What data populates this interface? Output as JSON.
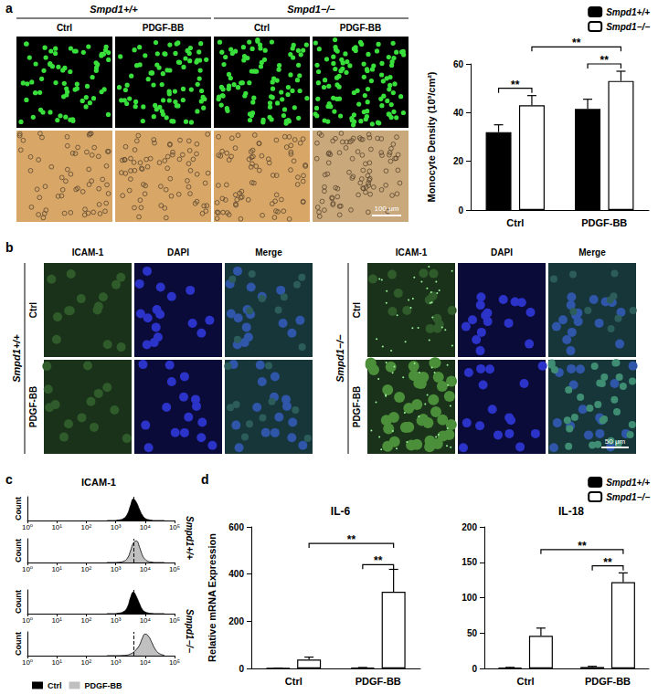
{
  "panel_labels": [
    "a",
    "b",
    "c",
    "d"
  ],
  "panel_a_images": {
    "groups": [
      "Smpd1+/+",
      "Smpd1−/−"
    ],
    "columns": [
      "Ctrl",
      "PDGF-BB",
      "Ctrl",
      "PDGF-BB"
    ],
    "scale_bar": "100 μm"
  },
  "panel_b_images": {
    "groups": [
      {
        "title": "Smpd1+/+",
        "rows": [
          "Ctrl",
          "PDGF-BB"
        ]
      },
      {
        "title": "Smpd1−/−",
        "rows": [
          "Ctrl",
          "PDGF-BB"
        ]
      }
    ],
    "columns": [
      "ICAM-1",
      "DAPI",
      "Merge"
    ],
    "scale_bar": "50 μm"
  },
  "panel_c_title": "ICAM-1",
  "chart_data": [
    {
      "type": "bar",
      "ylabel": "Monocyte Density (10³/cm²)",
      "categories": [
        "Ctrl",
        "PDGF-BB"
      ],
      "series": [
        {
          "name": "Smpd1+/+",
          "color": "#000000",
          "values": [
            32,
            41.5
          ],
          "errors": [
            3,
            4
          ]
        },
        {
          "name": "Smpd1−/−",
          "color": "#ffffff",
          "values": [
            43,
            53
          ],
          "errors": [
            4,
            4
          ]
        }
      ],
      "ylim": [
        0,
        60
      ],
      "yticks": [
        0,
        20,
        40,
        60
      ],
      "legend": "upper right",
      "annotations": [
        {
          "text": "**",
          "from": [
            "Ctrl",
            "Smpd1+/+"
          ],
          "to": [
            "Ctrl",
            "Smpd1−/−"
          ],
          "y": 50
        },
        {
          "text": "**",
          "from": [
            "PDGF-BB",
            "Smpd1+/+"
          ],
          "to": [
            "PDGF-BB",
            "Smpd1−/−"
          ],
          "y": 60
        },
        {
          "text": "**",
          "from": [
            "Ctrl",
            "Smpd1−/−"
          ],
          "to": [
            "PDGF-BB",
            "Smpd1−/−"
          ],
          "y": 67
        }
      ]
    },
    {
      "type": "area",
      "title": "Smpd1+/+",
      "ylabel": "Count",
      "log": "x",
      "tick_labels": "x",
      "x": [
        500,
        800,
        1200,
        1800,
        2500,
        3200,
        4000,
        5000,
        6500,
        8000,
        10000,
        13000,
        17000,
        22000,
        30000,
        45000
      ],
      "series": [
        {
          "name": "Ctrl",
          "color": "#000000",
          "values": [
            0,
            0,
            2,
            8,
            30,
            70,
            100,
            85,
            50,
            25,
            10,
            4,
            1,
            0,
            0,
            0
          ]
        },
        {
          "name": "PDGF-BB",
          "color": "#c0c0c0",
          "values": [
            0,
            0,
            1,
            5,
            20,
            55,
            90,
            100,
            70,
            35,
            15,
            5,
            2,
            0,
            0,
            0
          ]
        }
      ],
      "reference_x": 4000,
      "xlim": [
        1,
        100000
      ],
      "xticks": [
        {
          "value": 1,
          "label": "10⁰"
        },
        {
          "value": 10,
          "label": "10¹"
        },
        {
          "value": 100,
          "label": "10²"
        },
        {
          "value": 1000,
          "label": "10³"
        },
        {
          "value": 10000,
          "label": "10⁴"
        },
        {
          "value": 100000,
          "label": "10⁵"
        }
      ],
      "ylim": [
        0,
        110
      ]
    },
    {
      "type": "area",
      "title": "Smpd1−/−",
      "ylabel": "Count",
      "log": "x",
      "tick_labels": "x",
      "legend": "lower left",
      "x": [
        500,
        800,
        1200,
        1800,
        2500,
        3200,
        4000,
        5000,
        6500,
        8000,
        10000,
        13000,
        17000,
        22000,
        30000,
        45000
      ],
      "series": [
        {
          "name": "Ctrl",
          "color": "#000000",
          "values": [
            0,
            0,
            2,
            8,
            30,
            75,
            100,
            80,
            45,
            20,
            8,
            3,
            1,
            0,
            0,
            0
          ]
        },
        {
          "name": "PDGF-BB",
          "color": "#c0c0c0",
          "values": [
            0,
            0,
            0,
            1,
            3,
            8,
            15,
            28,
            50,
            80,
            100,
            90,
            60,
            30,
            10,
            2
          ]
        }
      ],
      "reference_x": 4000,
      "xlim": [
        1,
        100000
      ],
      "xticks": [
        {
          "value": 1,
          "label": "10⁰"
        },
        {
          "value": 10,
          "label": "10¹"
        },
        {
          "value": 100,
          "label": "10²"
        },
        {
          "value": 1000,
          "label": "10³"
        },
        {
          "value": 10000,
          "label": "10⁴"
        },
        {
          "value": 100000,
          "label": "10⁵"
        }
      ],
      "ylim": [
        0,
        110
      ]
    },
    {
      "type": "bar",
      "title": "IL-6",
      "ylabel": "Relative mRNA Expression",
      "categories": [
        "Ctrl",
        "PDGF-BB"
      ],
      "series": [
        {
          "name": "Smpd1+/+",
          "color": "#000000",
          "values": [
            1,
            3
          ],
          "errors": [
            0.5,
            1
          ]
        },
        {
          "name": "Smpd1−/−",
          "color": "#ffffff",
          "values": [
            38,
            325
          ],
          "errors": [
            10,
            95
          ]
        }
      ],
      "ylim": [
        0,
        600
      ],
      "yticks": [
        0,
        200,
        400,
        600
      ],
      "annotations": [
        {
          "text": "**",
          "from": [
            "PDGF-BB",
            "Smpd1+/+"
          ],
          "to": [
            "PDGF-BB",
            "Smpd1−/−"
          ],
          "y": 440
        },
        {
          "text": "**",
          "from": [
            "Ctrl",
            "Smpd1−/−"
          ],
          "to": [
            "PDGF-BB",
            "Smpd1−/−"
          ],
          "y": 530
        }
      ]
    },
    {
      "type": "bar",
      "title": "IL-18",
      "categories": [
        "Ctrl",
        "PDGF-BB"
      ],
      "series": [
        {
          "name": "Smpd1+/+",
          "color": "#000000",
          "values": [
            1,
            2
          ],
          "errors": [
            0.5,
            1
          ]
        },
        {
          "name": "Smpd1−/−",
          "color": "#ffffff",
          "values": [
            46,
            122
          ],
          "errors": [
            11,
            13
          ]
        }
      ],
      "ylim": [
        0,
        200
      ],
      "yticks": [
        0,
        50,
        100,
        150,
        200
      ],
      "legend": "upper right",
      "annotations": [
        {
          "text": "**",
          "from": [
            "PDGF-BB",
            "Smpd1+/+"
          ],
          "to": [
            "PDGF-BB",
            "Smpd1−/−"
          ],
          "y": 145
        },
        {
          "text": "**",
          "from": [
            "Ctrl",
            "Smpd1−/−"
          ],
          "to": [
            "PDGF-BB",
            "Smpd1−/−"
          ],
          "y": 168
        }
      ]
    }
  ]
}
